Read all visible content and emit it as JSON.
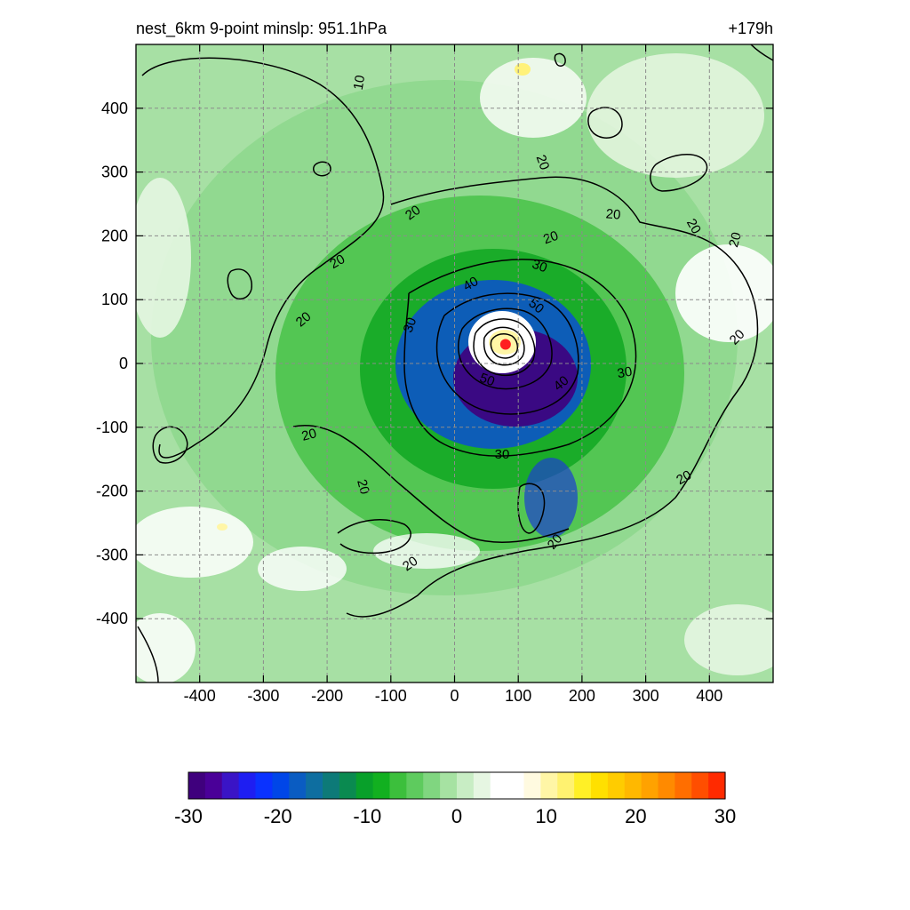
{
  "header": {
    "title_left": "nest_6km  9-point minslp: 951.1hPa",
    "title_right": "+179h"
  },
  "chart_data": {
    "type": "heatmap",
    "title": "nest_6km  9-point minslp: 951.1hPa",
    "forecast_hour_label": "+179h",
    "xlim": [
      -500,
      500
    ],
    "ylim": [
      -500,
      500
    ],
    "x_ticks": [
      -400,
      -300,
      -200,
      -100,
      0,
      100,
      200,
      300,
      400
    ],
    "y_ticks": [
      400,
      300,
      200,
      100,
      0,
      -100,
      -200,
      -300,
      -400
    ],
    "grid": true,
    "grid_style": "dashed",
    "storm_center": [
      80,
      30
    ],
    "contour_levels": [
      10,
      20,
      30,
      40,
      50
    ],
    "contour_label_values": [
      "10",
      "20",
      "20",
      "20",
      "20",
      "20",
      "20",
      "20",
      "20",
      "20",
      "20",
      "20",
      "20",
      "20",
      "20",
      "30",
      "30",
      "30",
      "30",
      "40",
      "40",
      "50",
      "50"
    ],
    "colorbar": {
      "min": -30,
      "max": 30,
      "ticks": [
        -30,
        -20,
        -10,
        0,
        10,
        20,
        30
      ],
      "colors": [
        "#3f007d",
        "#4a0098",
        "#3a14c6",
        "#1e1ef2",
        "#0a32ff",
        "#0046e8",
        "#0a5cc2",
        "#0e6ea0",
        "#0d7a78",
        "#0a8a50",
        "#08a02a",
        "#12b020",
        "#3cbf3c",
        "#5ecb5e",
        "#80d680",
        "#a6e2a2",
        "#c8edc4",
        "#e6f6e2",
        "#ffffff",
        "#ffffff",
        "#fffae0",
        "#fff6a6",
        "#fff270",
        "#fff026",
        "#ffe000",
        "#ffcc00",
        "#ffb800",
        "#ffa200",
        "#ff8a00",
        "#ff6e00",
        "#ff4e00",
        "#ff2a00"
      ]
    }
  }
}
